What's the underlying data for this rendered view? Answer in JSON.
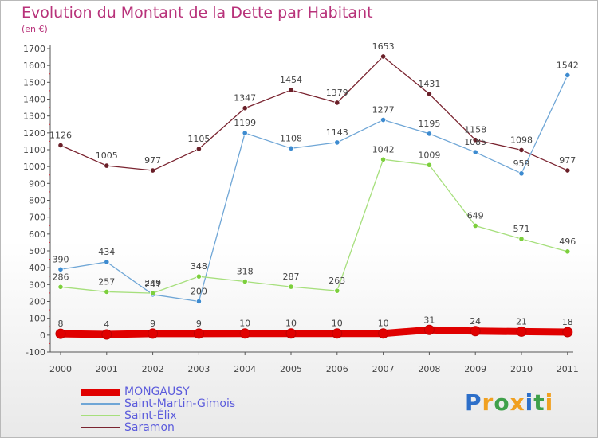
{
  "chart_data": {
    "type": "line",
    "title": "Evolution du Montant de la Dette par Habitant",
    "subtitle": "(en €)",
    "xlabel": "",
    "ylabel": "",
    "categories": [
      "2000",
      "2001",
      "2002",
      "2003",
      "2004",
      "2005",
      "2006",
      "2007",
      "2008",
      "2009",
      "2010",
      "2011"
    ],
    "ylim": [
      -100,
      1700
    ],
    "yticks": [
      -100,
      0,
      100,
      200,
      300,
      400,
      500,
      600,
      700,
      800,
      900,
      1000,
      1100,
      1200,
      1300,
      1400,
      1500,
      1600,
      1700
    ],
    "grid": false,
    "legend_position": "bottom-left",
    "series": [
      {
        "name": "MONGAUSY",
        "color": "#e00000",
        "marker_color": "#e00000",
        "values": [
          8,
          4,
          9,
          9,
          10,
          10,
          10,
          10,
          31,
          24,
          21,
          18
        ],
        "labels": [
          "8",
          "4",
          "9",
          "9",
          "10",
          "10",
          "10",
          "10",
          "31",
          "24",
          "21",
          "18"
        ]
      },
      {
        "name": "Saint-Martin-Gimois",
        "color": "#6fa6d6",
        "marker_color": "#3d8bd0",
        "values": [
          390,
          434,
          241,
          200,
          1199,
          1108,
          1143,
          1277,
          1195,
          1085,
          959,
          1542
        ],
        "labels": [
          "390",
          "434",
          "241",
          "200",
          "1199",
          "1108",
          "1143",
          "1277",
          "1195",
          "1085",
          "959",
          "1542"
        ]
      },
      {
        "name": "Saint-Élix",
        "color": "#a6df7c",
        "marker_color": "#7ccf3c",
        "values": [
          286,
          257,
          249,
          348,
          318,
          287,
          263,
          1042,
          1009,
          649,
          571,
          496
        ],
        "labels": [
          "286",
          "257",
          "249",
          "348",
          "318",
          "287",
          "263",
          "1042",
          "1009",
          "649",
          "571",
          "496"
        ]
      },
      {
        "name": "Saramon",
        "color": "#7a2430",
        "marker_color": "#6a1f28",
        "values": [
          1126,
          1005,
          977,
          1105,
          1347,
          1454,
          1379,
          1653,
          1431,
          1158,
          1098,
          977
        ],
        "labels": [
          "1126",
          "1005",
          "977",
          "1105",
          "1347",
          "1454",
          "1379",
          "1653",
          "1431",
          "1158",
          "1098",
          "977"
        ]
      }
    ]
  },
  "logo": {
    "text": "Proxiti",
    "letters": [
      "P",
      "r",
      "o",
      "x",
      "i",
      "t",
      "i"
    ],
    "colors": [
      "#2d6fc9",
      "#f0a020",
      "#3fa04a",
      "#f0a020",
      "#2d6fc9",
      "#3fa04a",
      "#f0a020"
    ]
  }
}
